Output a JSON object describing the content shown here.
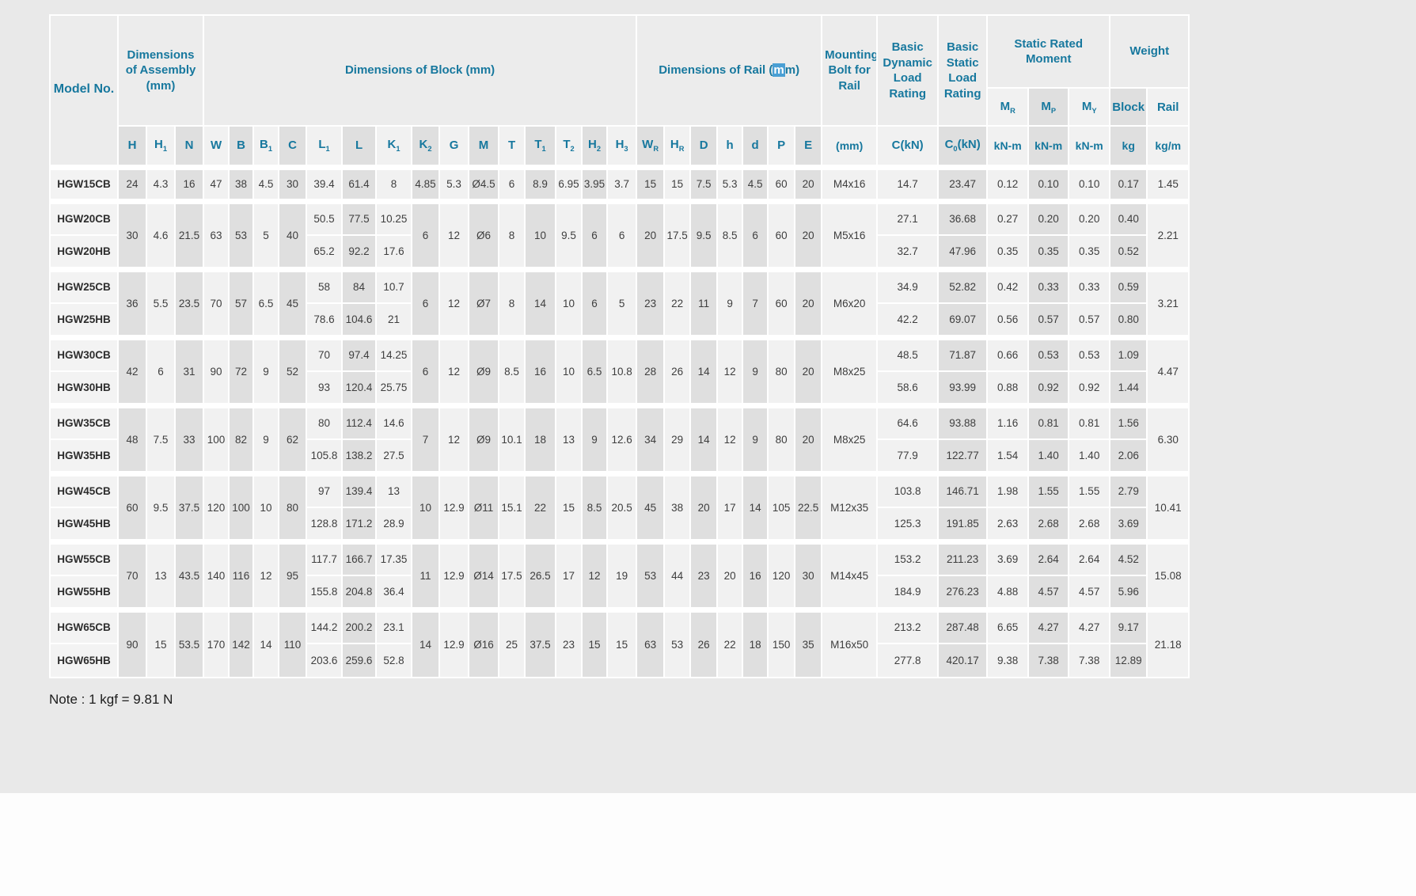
{
  "page": {
    "note": "Note : 1 kgf = 9.81 N"
  },
  "colors": {
    "header_text": "#17789e",
    "selection_highlight": "#4a9fd4",
    "stripe_dark": "#dfdfdf",
    "stripe_light": "#f1f1f1",
    "page_background": "#e9e9e9"
  },
  "table": {
    "header": {
      "model": "Model No.",
      "assembly_group": "Dimensions of Assembly (mm)",
      "block_group": "Dimensions of Block (mm)",
      "rail_group": {
        "pre": "Dimensions of Rail (",
        "highlight": "m",
        "post": "m)"
      },
      "bolt_group": "Mounting Bolt for Rail",
      "bolt_unit": "(mm)",
      "dynamic_group": "Basic Dynamic Load Rating",
      "dynamic_col": "C(kN)",
      "static_group": "Basic Static Load Rating",
      "static_col": "C_0(kN)",
      "moment_group": "Static Rated Moment",
      "moment_cols": [
        "M_R",
        "M_P",
        "M_Y"
      ],
      "moment_units": [
        "kN-m",
        "kN-m",
        "kN-m"
      ],
      "weight_group": "Weight",
      "weight_cols": [
        "Block",
        "Rail"
      ],
      "weight_units": [
        "kg",
        "kg/m"
      ],
      "dim_symbols": [
        "H",
        "H_1",
        "N",
        "W",
        "B",
        "B_1",
        "C",
        "L_1",
        "L",
        "K_1",
        "K_2",
        "G",
        "M",
        "T",
        "T_1",
        "T_2",
        "H_2",
        "H_3",
        "W_R",
        "H_R",
        "D",
        "h",
        "d",
        "P",
        "E"
      ]
    },
    "groups": [
      {
        "models": [
          "HGW15CB"
        ],
        "assembly_block": [
          "24",
          "4.3",
          "16",
          "47",
          "38",
          "4.5",
          "30"
        ],
        "block_lengths": [
          [
            "39.4",
            "61.4",
            "8"
          ]
        ],
        "mid_dims": [
          "4.85",
          "5.3",
          "Ø4.5",
          "6",
          "8.9",
          "6.95",
          "3.95",
          "3.7",
          "15",
          "15",
          "7.5",
          "5.3",
          "4.5",
          "60",
          "20"
        ],
        "bolt": "M4x16",
        "loads": [
          [
            "14.7",
            "23.47",
            "0.12",
            "0.10",
            "0.10",
            "0.17"
          ]
        ],
        "rail_weight": "1.45"
      },
      {
        "models": [
          "HGW20CB",
          "HGW20HB"
        ],
        "assembly_block": [
          "30",
          "4.6",
          "21.5",
          "63",
          "53",
          "5",
          "40"
        ],
        "block_lengths": [
          [
            "50.5",
            "77.5",
            "10.25"
          ],
          [
            "65.2",
            "92.2",
            "17.6"
          ]
        ],
        "mid_dims": [
          "6",
          "12",
          "Ø6",
          "8",
          "10",
          "9.5",
          "6",
          "6",
          "20",
          "17.5",
          "9.5",
          "8.5",
          "6",
          "60",
          "20"
        ],
        "bolt": "M5x16",
        "loads": [
          [
            "27.1",
            "36.68",
            "0.27",
            "0.20",
            "0.20",
            "0.40"
          ],
          [
            "32.7",
            "47.96",
            "0.35",
            "0.35",
            "0.35",
            "0.52"
          ]
        ],
        "rail_weight": "2.21"
      },
      {
        "models": [
          "HGW25CB",
          "HGW25HB"
        ],
        "assembly_block": [
          "36",
          "5.5",
          "23.5",
          "70",
          "57",
          "6.5",
          "45"
        ],
        "block_lengths": [
          [
            "58",
            "84",
            "10.7"
          ],
          [
            "78.6",
            "104.6",
            "21"
          ]
        ],
        "mid_dims": [
          "6",
          "12",
          "Ø7",
          "8",
          "14",
          "10",
          "6",
          "5",
          "23",
          "22",
          "11",
          "9",
          "7",
          "60",
          "20"
        ],
        "bolt": "M6x20",
        "loads": [
          [
            "34.9",
            "52.82",
            "0.42",
            "0.33",
            "0.33",
            "0.59"
          ],
          [
            "42.2",
            "69.07",
            "0.56",
            "0.57",
            "0.57",
            "0.80"
          ]
        ],
        "rail_weight": "3.21"
      },
      {
        "models": [
          "HGW30CB",
          "HGW30HB"
        ],
        "assembly_block": [
          "42",
          "6",
          "31",
          "90",
          "72",
          "9",
          "52"
        ],
        "block_lengths": [
          [
            "70",
            "97.4",
            "14.25"
          ],
          [
            "93",
            "120.4",
            "25.75"
          ]
        ],
        "mid_dims": [
          "6",
          "12",
          "Ø9",
          "8.5",
          "16",
          "10",
          "6.5",
          "10.8",
          "28",
          "26",
          "14",
          "12",
          "9",
          "80",
          "20"
        ],
        "bolt": "M8x25",
        "loads": [
          [
            "48.5",
            "71.87",
            "0.66",
            "0.53",
            "0.53",
            "1.09"
          ],
          [
            "58.6",
            "93.99",
            "0.88",
            "0.92",
            "0.92",
            "1.44"
          ]
        ],
        "rail_weight": "4.47"
      },
      {
        "models": [
          "HGW35CB",
          "HGW35HB"
        ],
        "assembly_block": [
          "48",
          "7.5",
          "33",
          "100",
          "82",
          "9",
          "62"
        ],
        "block_lengths": [
          [
            "80",
            "112.4",
            "14.6"
          ],
          [
            "105.8",
            "138.2",
            "27.5"
          ]
        ],
        "mid_dims": [
          "7",
          "12",
          "Ø9",
          "10.1",
          "18",
          "13",
          "9",
          "12.6",
          "34",
          "29",
          "14",
          "12",
          "9",
          "80",
          "20"
        ],
        "bolt": "M8x25",
        "loads": [
          [
            "64.6",
            "93.88",
            "1.16",
            "0.81",
            "0.81",
            "1.56"
          ],
          [
            "77.9",
            "122.77",
            "1.54",
            "1.40",
            "1.40",
            "2.06"
          ]
        ],
        "rail_weight": "6.30"
      },
      {
        "models": [
          "HGW45CB",
          "HGW45HB"
        ],
        "assembly_block": [
          "60",
          "9.5",
          "37.5",
          "120",
          "100",
          "10",
          "80"
        ],
        "block_lengths": [
          [
            "97",
            "139.4",
            "13"
          ],
          [
            "128.8",
            "171.2",
            "28.9"
          ]
        ],
        "mid_dims": [
          "10",
          "12.9",
          "Ø11",
          "15.1",
          "22",
          "15",
          "8.5",
          "20.5",
          "45",
          "38",
          "20",
          "17",
          "14",
          "105",
          "22.5"
        ],
        "bolt": "M12x35",
        "loads": [
          [
            "103.8",
            "146.71",
            "1.98",
            "1.55",
            "1.55",
            "2.79"
          ],
          [
            "125.3",
            "191.85",
            "2.63",
            "2.68",
            "2.68",
            "3.69"
          ]
        ],
        "rail_weight": "10.41"
      },
      {
        "models": [
          "HGW55CB",
          "HGW55HB"
        ],
        "assembly_block": [
          "70",
          "13",
          "43.5",
          "140",
          "116",
          "12",
          "95"
        ],
        "block_lengths": [
          [
            "117.7",
            "166.7",
            "17.35"
          ],
          [
            "155.8",
            "204.8",
            "36.4"
          ]
        ],
        "mid_dims": [
          "11",
          "12.9",
          "Ø14",
          "17.5",
          "26.5",
          "17",
          "12",
          "19",
          "53",
          "44",
          "23",
          "20",
          "16",
          "120",
          "30"
        ],
        "bolt": "M14x45",
        "loads": [
          [
            "153.2",
            "211.23",
            "3.69",
            "2.64",
            "2.64",
            "4.52"
          ],
          [
            "184.9",
            "276.23",
            "4.88",
            "4.57",
            "4.57",
            "5.96"
          ]
        ],
        "rail_weight": "15.08"
      },
      {
        "models": [
          "HGW65CB",
          "HGW65HB"
        ],
        "assembly_block": [
          "90",
          "15",
          "53.5",
          "170",
          "142",
          "14",
          "110"
        ],
        "block_lengths": [
          [
            "144.2",
            "200.2",
            "23.1"
          ],
          [
            "203.6",
            "259.6",
            "52.8"
          ]
        ],
        "mid_dims": [
          "14",
          "12.9",
          "Ø16",
          "25",
          "37.5",
          "23",
          "15",
          "15",
          "63",
          "53",
          "26",
          "22",
          "18",
          "150",
          "35"
        ],
        "bolt": "M16x50",
        "loads": [
          [
            "213.2",
            "287.48",
            "6.65",
            "4.27",
            "4.27",
            "9.17"
          ],
          [
            "277.8",
            "420.17",
            "9.38",
            "7.38",
            "7.38",
            "12.89"
          ]
        ],
        "rail_weight": "21.18"
      }
    ]
  }
}
